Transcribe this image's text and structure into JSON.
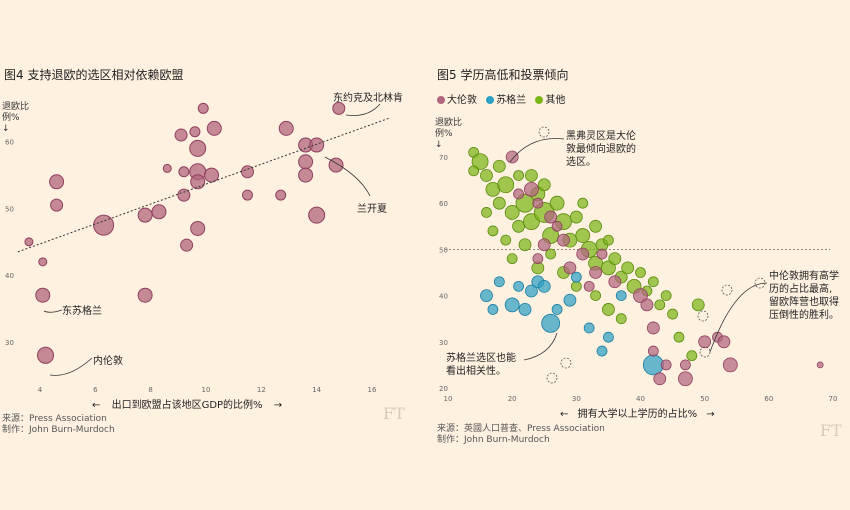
{
  "chart_data": [
    {
      "type": "scatter",
      "title": "图4 支持退欧的选区相对依赖欧盟",
      "ylabel": "退欧比例%",
      "ylabel_lines": [
        "退欧比",
        "例%"
      ],
      "ylabel_arrow": "↓",
      "xlabel": "出口到欧盟占该地区GDP的比例%",
      "xlabel_left_arrow": "←",
      "xlabel_right_arrow": "→",
      "xlim": [
        3,
        17
      ],
      "ylim": [
        24,
        67
      ],
      "x_ticks": [
        "4",
        "6",
        "8",
        "10",
        "12",
        "14",
        "16"
      ],
      "y_ticks": [
        "30",
        "40",
        "50",
        "60"
      ],
      "bubble_color": "#b2657e",
      "trendline": {
        "x": [
          3.2,
          16.6
        ],
        "y": [
          43.5,
          63.5
        ]
      },
      "annotations": [
        "东约克及北林肯",
        "兰开夏",
        "东苏格兰",
        "内伦敦"
      ],
      "points": [
        {
          "x": 3.6,
          "y": 45,
          "r": 4
        },
        {
          "x": 4.1,
          "y": 42,
          "r": 4
        },
        {
          "x": 4.6,
          "y": 54,
          "r": 7
        },
        {
          "x": 4.6,
          "y": 50.5,
          "r": 6
        },
        {
          "x": 4.1,
          "y": 37,
          "r": 7
        },
        {
          "x": 4.2,
          "y": 28,
          "r": 8
        },
        {
          "x": 6.3,
          "y": 47.5,
          "r": 10
        },
        {
          "x": 7.8,
          "y": 37,
          "r": 7
        },
        {
          "x": 7.8,
          "y": 49,
          "r": 7
        },
        {
          "x": 8.3,
          "y": 49.5,
          "r": 7
        },
        {
          "x": 8.6,
          "y": 56,
          "r": 4
        },
        {
          "x": 9.1,
          "y": 61,
          "r": 6
        },
        {
          "x": 9.2,
          "y": 55.5,
          "r": 5
        },
        {
          "x": 9.2,
          "y": 52,
          "r": 6
        },
        {
          "x": 9.3,
          "y": 44.5,
          "r": 6
        },
        {
          "x": 9.6,
          "y": 61.5,
          "r": 5
        },
        {
          "x": 9.7,
          "y": 59,
          "r": 8
        },
        {
          "x": 9.7,
          "y": 55.5,
          "r": 8
        },
        {
          "x": 9.7,
          "y": 54,
          "r": 7
        },
        {
          "x": 9.7,
          "y": 47,
          "r": 7
        },
        {
          "x": 9.9,
          "y": 65,
          "r": 5
        },
        {
          "x": 10.2,
          "y": 55,
          "r": 7
        },
        {
          "x": 10.3,
          "y": 62,
          "r": 7
        },
        {
          "x": 11.5,
          "y": 55.5,
          "r": 6
        },
        {
          "x": 11.5,
          "y": 52,
          "r": 5
        },
        {
          "x": 12.7,
          "y": 52,
          "r": 5
        },
        {
          "x": 12.9,
          "y": 62,
          "r": 7
        },
        {
          "x": 13.6,
          "y": 59.5,
          "r": 7
        },
        {
          "x": 13.6,
          "y": 57,
          "r": 7
        },
        {
          "x": 13.6,
          "y": 55,
          "r": 7
        },
        {
          "x": 14.0,
          "y": 49,
          "r": 8
        },
        {
          "x": 14.0,
          "y": 59.5,
          "r": 7
        },
        {
          "x": 14.7,
          "y": 56.5,
          "r": 7
        },
        {
          "x": 14.8,
          "y": 65,
          "r": 6
        }
      ]
    },
    {
      "type": "scatter",
      "title": "图5 学历高低和投票倾向",
      "legend": [
        {
          "name": "大伦敦",
          "color": "#b2657e"
        },
        {
          "name": "苏格兰",
          "color": "#2c9fc4"
        },
        {
          "name": "其他",
          "color": "#7cb518"
        }
      ],
      "ylabel": "退欧比例%",
      "ylabel_lines": [
        "退欧比",
        "例%"
      ],
      "ylabel_arrow": "↓",
      "xlabel": "拥有大学以上学历的占比%",
      "xlabel_left_arrow": "←",
      "xlabel_right_arrow": "→",
      "xlim": [
        10,
        70
      ],
      "ylim": [
        20,
        75
      ],
      "x_ticks": [
        "10",
        "20",
        "30",
        "40",
        "50",
        "60",
        "70"
      ],
      "y_ticks": [
        "20",
        "30",
        "40",
        "50",
        "60",
        "70"
      ],
      "reference_line_y": 50,
      "annotations": [
        [
          "黑弗灵区是大伦",
          "敦最倾向退欧的",
          "选区。"
        ],
        [
          "苏格兰选区也能",
          "看出相关性。"
        ],
        [
          "中伦敦拥有高学",
          "历的占比最高,",
          "留欧阵营也取得",
          "压倒性的胜利。"
        ]
      ],
      "london_points": [
        {
          "x": 20,
          "y": 70,
          "r": 6
        },
        {
          "x": 21,
          "y": 62,
          "r": 5
        },
        {
          "x": 23,
          "y": 63,
          "r": 7
        },
        {
          "x": 24,
          "y": 60,
          "r": 5
        },
        {
          "x": 26,
          "y": 57,
          "r": 6
        },
        {
          "x": 27,
          "y": 55,
          "r": 5
        },
        {
          "x": 25,
          "y": 51,
          "r": 6
        },
        {
          "x": 24,
          "y": 48,
          "r": 5
        },
        {
          "x": 28,
          "y": 52,
          "r": 6
        },
        {
          "x": 29,
          "y": 46,
          "r": 6
        },
        {
          "x": 31,
          "y": 49,
          "r": 6
        },
        {
          "x": 33,
          "y": 45,
          "r": 6
        },
        {
          "x": 34,
          "y": 49,
          "r": 5
        },
        {
          "x": 32,
          "y": 42,
          "r": 5
        },
        {
          "x": 36,
          "y": 43,
          "r": 6
        },
        {
          "x": 40,
          "y": 40,
          "r": 7
        },
        {
          "x": 41,
          "y": 38,
          "r": 6
        },
        {
          "x": 42,
          "y": 33,
          "r": 6
        },
        {
          "x": 42,
          "y": 28,
          "r": 5
        },
        {
          "x": 43,
          "y": 22,
          "r": 6
        },
        {
          "x": 44,
          "y": 25,
          "r": 5
        },
        {
          "x": 47,
          "y": 25,
          "r": 5
        },
        {
          "x": 47,
          "y": 22,
          "r": 7
        },
        {
          "x": 50,
          "y": 30,
          "r": 6
        },
        {
          "x": 52,
          "y": 31,
          "r": 5
        },
        {
          "x": 53,
          "y": 30,
          "r": 6
        },
        {
          "x": 54,
          "y": 25,
          "r": 7
        },
        {
          "x": 68,
          "y": 25,
          "r": 3
        }
      ],
      "scotland_points": [
        {
          "x": 16,
          "y": 40,
          "r": 6
        },
        {
          "x": 17,
          "y": 37,
          "r": 5
        },
        {
          "x": 18,
          "y": 43,
          "r": 5
        },
        {
          "x": 20,
          "y": 38,
          "r": 7
        },
        {
          "x": 21,
          "y": 42,
          "r": 5
        },
        {
          "x": 22,
          "y": 37,
          "r": 6
        },
        {
          "x": 23,
          "y": 41,
          "r": 6
        },
        {
          "x": 24,
          "y": 43,
          "r": 6
        },
        {
          "x": 25,
          "y": 42,
          "r": 6
        },
        {
          "x": 26,
          "y": 34,
          "r": 9
        },
        {
          "x": 27,
          "y": 37,
          "r": 5
        },
        {
          "x": 29,
          "y": 39,
          "r": 6
        },
        {
          "x": 32,
          "y": 33,
          "r": 5
        },
        {
          "x": 34,
          "y": 28,
          "r": 5
        },
        {
          "x": 35,
          "y": 31,
          "r": 5
        },
        {
          "x": 42,
          "y": 25,
          "r": 10
        },
        {
          "x": 30,
          "y": 44,
          "r": 5
        },
        {
          "x": 37,
          "y": 40,
          "r": 5
        }
      ],
      "other_points": [
        {
          "x": 14,
          "y": 71,
          "r": 5
        },
        {
          "x": 15,
          "y": 69,
          "r": 8
        },
        {
          "x": 16,
          "y": 66,
          "r": 6
        },
        {
          "x": 17,
          "y": 63,
          "r": 7
        },
        {
          "x": 18,
          "y": 60,
          "r": 6
        },
        {
          "x": 16,
          "y": 58,
          "r": 5
        },
        {
          "x": 19,
          "y": 64,
          "r": 8
        },
        {
          "x": 20,
          "y": 58,
          "r": 7
        },
        {
          "x": 21,
          "y": 55,
          "r": 6
        },
        {
          "x": 19,
          "y": 52,
          "r": 5
        },
        {
          "x": 22,
          "y": 60,
          "r": 9
        },
        {
          "x": 23,
          "y": 56,
          "r": 8
        },
        {
          "x": 24,
          "y": 62,
          "r": 7
        },
        {
          "x": 25,
          "y": 58,
          "r": 10
        },
        {
          "x": 26,
          "y": 53,
          "r": 8
        },
        {
          "x": 27,
          "y": 60,
          "r": 7
        },
        {
          "x": 28,
          "y": 56,
          "r": 8
        },
        {
          "x": 29,
          "y": 52,
          "r": 7
        },
        {
          "x": 30,
          "y": 57,
          "r": 6
        },
        {
          "x": 31,
          "y": 53,
          "r": 7
        },
        {
          "x": 32,
          "y": 50,
          "r": 8
        },
        {
          "x": 33,
          "y": 47,
          "r": 7
        },
        {
          "x": 34,
          "y": 51,
          "r": 6
        },
        {
          "x": 35,
          "y": 46,
          "r": 7
        },
        {
          "x": 36,
          "y": 48,
          "r": 6
        },
        {
          "x": 37,
          "y": 44,
          "r": 6
        },
        {
          "x": 38,
          "y": 46,
          "r": 6
        },
        {
          "x": 39,
          "y": 42,
          "r": 7
        },
        {
          "x": 40,
          "y": 45,
          "r": 5
        },
        {
          "x": 41,
          "y": 41,
          "r": 5
        },
        {
          "x": 20,
          "y": 48,
          "r": 5
        },
        {
          "x": 22,
          "y": 51,
          "r": 6
        },
        {
          "x": 24,
          "y": 46,
          "r": 6
        },
        {
          "x": 26,
          "y": 49,
          "r": 5
        },
        {
          "x": 28,
          "y": 45,
          "r": 6
        },
        {
          "x": 30,
          "y": 42,
          "r": 5
        },
        {
          "x": 33,
          "y": 40,
          "r": 5
        },
        {
          "x": 35,
          "y": 37,
          "r": 6
        },
        {
          "x": 37,
          "y": 35,
          "r": 5
        },
        {
          "x": 17,
          "y": 54,
          "r": 5
        },
        {
          "x": 18,
          "y": 68,
          "r": 6
        },
        {
          "x": 21,
          "y": 66,
          "r": 5
        },
        {
          "x": 23,
          "y": 66,
          "r": 6
        },
        {
          "x": 25,
          "y": 64,
          "r": 6
        },
        {
          "x": 14,
          "y": 67,
          "r": 5
        },
        {
          "x": 44,
          "y": 40,
          "r": 5
        },
        {
          "x": 45,
          "y": 36,
          "r": 5
        },
        {
          "x": 46,
          "y": 31,
          "r": 5
        },
        {
          "x": 48,
          "y": 27,
          "r": 5
        },
        {
          "x": 49,
          "y": 38,
          "r": 6
        },
        {
          "x": 42,
          "y": 43,
          "r": 5
        },
        {
          "x": 43,
          "y": 38,
          "r": 5
        },
        {
          "x": 31,
          "y": 60,
          "r": 5
        },
        {
          "x": 33,
          "y": 55,
          "r": 6
        },
        {
          "x": 35,
          "y": 52,
          "r": 5
        }
      ]
    }
  ],
  "left": {
    "title": "图4 支持退欧的选区相对依赖欧盟",
    "source": "来源：Press Association",
    "credit": "制作：John Burn-Murdoch",
    "logo": "FT"
  },
  "right": {
    "title": "图5 学历高低和投票倾向",
    "source": "来源：英國人口普查、Press Association",
    "credit": "制作：John Burn-Murdoch",
    "logo": "FT"
  }
}
